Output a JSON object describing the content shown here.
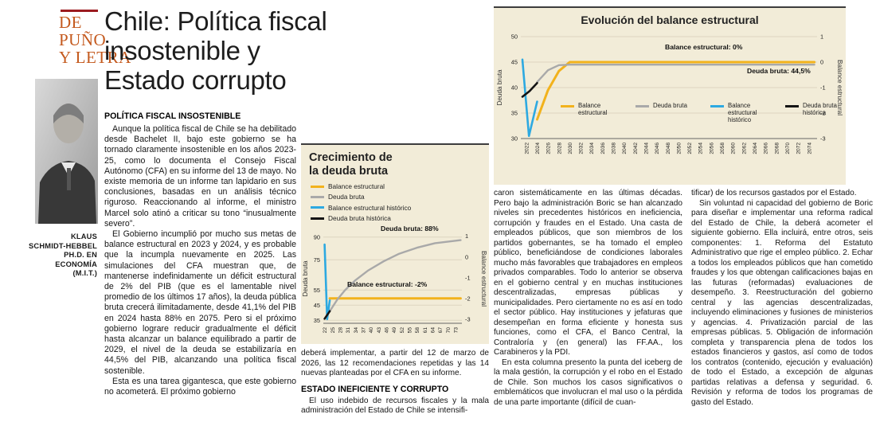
{
  "masthead": {
    "rubric_lines": [
      "DE",
      "PUÑO",
      "Y LETRA"
    ],
    "author_lines": [
      "KLAUS",
      "SCHMIDT-HEBBEL",
      "PH.D. EN",
      "ECONOMÍA",
      "(M.I.T.)"
    ]
  },
  "headline": {
    "lines": [
      "Chile: Política fiscal",
      "insostenible y",
      "Estado corrupto"
    ]
  },
  "article": {
    "sec1_title": "POLÍTICA FISCAL INSOSTENIBLE",
    "col1": [
      "Aunque la política fiscal de Chile se ha debilitado desde Bachelet II, bajo este gobierno se ha tornado claramente insostenible en los años 2023-25, como lo documenta el Consejo Fiscal Autónomo (CFA) en su informe del 13 de mayo. No existe memoria de un informe tan lapidario en sus conclusiones, basadas en un análisis técnico riguroso. Reaccionando al informe, el ministro Marcel solo atinó a criticar su tono “inusualmente severo”.",
      "El Gobierno incumplió por mucho sus metas de balance estructural en 2023 y 2024, y es probable que la incumpla nuevamente en 2025. Las simulaciones del CFA muestran que, de mantenerse indefinidamente un déficit estructural de 2% del PIB (que es el lamentable nivel promedio de los últimos 17 años), la deuda pública bruta crecerá ilimitadamente, desde 41,1% del PIB en 2024 hasta 88% en 2075. Pero si el próximo gobierno lograre reducir gradualmente el déficit hasta alcanzar un balance equilibrado a partir de 2029, el nivel de la deuda se estabilizaría en 44,5% del PIB, alcanzando una política fiscal sostenible.",
      "Esta es una tarea gigantesca, que este gobierno no acometerá. El próximo gobierno"
    ],
    "col2_cont": "deberá implementar, a partir del 12 de marzo de 2026, las 12 recomendaciones repetidas y las 14 nuevas planteadas por el CFA en su informe.",
    "sec2_title": "ESTADO INEFICIENTE Y CORRUPTO",
    "col2_p": "El uso indebido de recursos fiscales y la mala administración del Estado de Chile se intensifi-",
    "col3": [
      "caron sistemáticamente en las últimas décadas. Pero bajo la administración Boric se han alcanzado niveles sin precedentes históricos en ineficiencia, corrupción y fraudes en el Estado. Una casta de empleados públicos, que son miembros de los partidos gobernantes, se ha tomado el empleo público, beneficiándose de condiciones laborales mucho más favorables que trabajadores en empleos privados comparables. Todo lo anterior se observa en el gobierno central y en muchas instituciones descentralizadas, empresas públicas y municipalidades. Pero ciertamente no es así en todo el sector público. Hay instituciones y jefaturas que desempeñan en forma eficiente y honesta sus funciones, como el CFA, el Banco Central, la Contraloría y (en general) las FF.AA., los Carabineros y la PDI.",
      "En esta columna presento la punta del iceberg de la mala gestión, la corrupción y el robo en el Estado de Chile. Son muchos los casos significativos o emblemáticos que involucran el mal uso o la pérdida de una parte importante (difícil de cuan-"
    ],
    "col4": [
      "tificar) de los recursos gastados por el Estado.",
      "Sin voluntad ni capacidad del gobierno de Boric para diseñar e implementar una reforma radical del Estado de Chile, la deberá acometer el siguiente gobierno. Ella incluirá, entre otros, seis componentes: 1. Reforma del Estatuto Administrativo que rige el empleo público. 2. Echar a todos los empleados públicos que han cometido fraudes y los que obtengan calificaciones bajas en las futuras (reformadas) evaluaciones de desempeño. 3. Reestructuración del gobierno central y las agencias descentralizadas, incluyendo eliminaciones y fusiones de ministerios y agencias. 4. Privatización parcial de las empresas públicas. 5. Obligación de información completa y transparencia plena de todos los estados financieros y gastos, así como de todos los contratos (contenido, ejecución y evaluación) de todo el Estado, a excepción de algunas partidas relativas a defensa y seguridad. 6. Revisión y reforma de todos los programas de gasto del Estado."
    ]
  },
  "colors": {
    "rubric_orange": "#c4591d",
    "rule_red": "#9c1b20",
    "chart_background": "#f2ecd8",
    "series_yellow": "#f2b21c",
    "series_gray": "#a9a9a9",
    "series_blue": "#2da9e1",
    "series_black": "#141414"
  },
  "chart_data": [
    {
      "type": "line",
      "title": "Crecimiento de la deuda bruta",
      "ylabel_left": "Deuda bruta",
      "ylabel_right": "Balance estructural",
      "xlim": [
        2021.5,
        2075.5
      ],
      "ylim_left": [
        33,
        92
      ],
      "yticks_left": [
        35,
        45,
        55,
        75,
        90
      ],
      "ylim_right": [
        -3.2,
        1.1
      ],
      "yticks_right": [
        1,
        0,
        -1,
        -2,
        -3
      ],
      "x_tick_labels": [
        "22",
        "25",
        "28",
        "31",
        "34",
        "37",
        "40",
        "43",
        "46",
        "49",
        "52",
        "55",
        "58",
        "61",
        "64",
        "67",
        "70",
        "73"
      ],
      "x_tick_values": [
        2022,
        2025,
        2028,
        2031,
        2034,
        2037,
        2040,
        2043,
        2046,
        2049,
        2052,
        2055,
        2058,
        2061,
        2064,
        2067,
        2070,
        2073
      ],
      "annotations": [
        "Deuda bruta: 88%",
        "Balance estructural: -2%"
      ],
      "legend_position": "top-left-vertical",
      "grid": true,
      "series": [
        {
          "name": "Balance estructural",
          "axis": "right",
          "color": "#f2b21c",
          "width": 3,
          "points": [
            [
              2024,
              -2
            ],
            [
              2075,
              -2
            ]
          ]
        },
        {
          "name": "Deuda bruta",
          "axis": "left",
          "color": "#a9a9a9",
          "width": 2.4,
          "points": [
            [
              2024,
              41
            ],
            [
              2027,
              48.8
            ],
            [
              2030,
              55
            ],
            [
              2034,
              61.5
            ],
            [
              2039,
              68
            ],
            [
              2045,
              74
            ],
            [
              2051,
              79
            ],
            [
              2058,
              83
            ],
            [
              2065,
              86
            ],
            [
              2075,
              88
            ]
          ]
        },
        {
          "name": "Balance estructural histórico",
          "axis": "right",
          "color": "#2da9e1",
          "width": 2.6,
          "points": [
            [
              2022,
              0.6
            ],
            [
              2023,
              -3
            ],
            [
              2024,
              -2.1
            ]
          ]
        },
        {
          "name": "Deuda bruta histórica",
          "axis": "left",
          "color": "#141414",
          "width": 2.6,
          "points": [
            [
              2022,
              36
            ],
            [
              2024,
              41
            ]
          ]
        }
      ]
    },
    {
      "type": "line",
      "title": "Evolución del balance estructural",
      "ylabel_left": "Deuda bruta",
      "ylabel_right": "Balance estructural",
      "xlim": [
        2021,
        2075.5
      ],
      "ylim_left": [
        30,
        50
      ],
      "yticks_left": [
        30,
        35,
        40,
        45,
        50
      ],
      "ylim_right": [
        -3,
        1
      ],
      "yticks_right": [
        1,
        0,
        -1,
        -2,
        -3
      ],
      "x_tick_labels": [
        "2022",
        "2024",
        "2026",
        "2028",
        "2030",
        "2032",
        "2034",
        "2036",
        "2038",
        "2040",
        "2042",
        "2044",
        "2046",
        "2048",
        "2050",
        "2052",
        "2054",
        "2056",
        "2058",
        "2060",
        "2062",
        "2064",
        "2066",
        "2068",
        "2070",
        "2072",
        "2074"
      ],
      "x_tick_values": [
        2022,
        2024,
        2026,
        2028,
        2030,
        2032,
        2034,
        2036,
        2038,
        2040,
        2042,
        2044,
        2046,
        2048,
        2050,
        2052,
        2054,
        2056,
        2058,
        2060,
        2062,
        2064,
        2066,
        2068,
        2070,
        2072,
        2074
      ],
      "annotations": [
        "Balance estructural: 0%",
        "Deuda bruta: 44,5%"
      ],
      "legend_position": "inside-bottom-horizontal",
      "grid": true,
      "series": [
        {
          "name": "Balance estructural",
          "axis": "right",
          "color": "#f2b21c",
          "width": 3,
          "points": [
            [
              2024,
              -2.25
            ],
            [
              2026,
              -1.1
            ],
            [
              2028,
              -0.35
            ],
            [
              2030,
              0
            ],
            [
              2075,
              0
            ]
          ]
        },
        {
          "name": "Deuda bruta",
          "axis": "left",
          "color": "#a9a9a9",
          "width": 2.4,
          "points": [
            [
              2024,
              41.1
            ],
            [
              2026,
              43.4
            ],
            [
              2028,
              44.4
            ],
            [
              2030,
              44.5
            ],
            [
              2075,
              44.5
            ]
          ]
        },
        {
          "name": "Balance estructural histórico",
          "axis": "right",
          "color": "#2da9e1",
          "width": 2.6,
          "points": [
            [
              2021.3,
              0.1
            ],
            [
              2022.5,
              -2.9
            ],
            [
              2024,
              -1.55
            ]
          ]
        },
        {
          "name": "Deuda bruta histórica",
          "axis": "left",
          "color": "#141414",
          "width": 2.6,
          "points": [
            [
              2021.3,
              38.2
            ],
            [
              2022.6,
              39.3
            ],
            [
              2024,
              40.9
            ]
          ]
        }
      ]
    }
  ]
}
